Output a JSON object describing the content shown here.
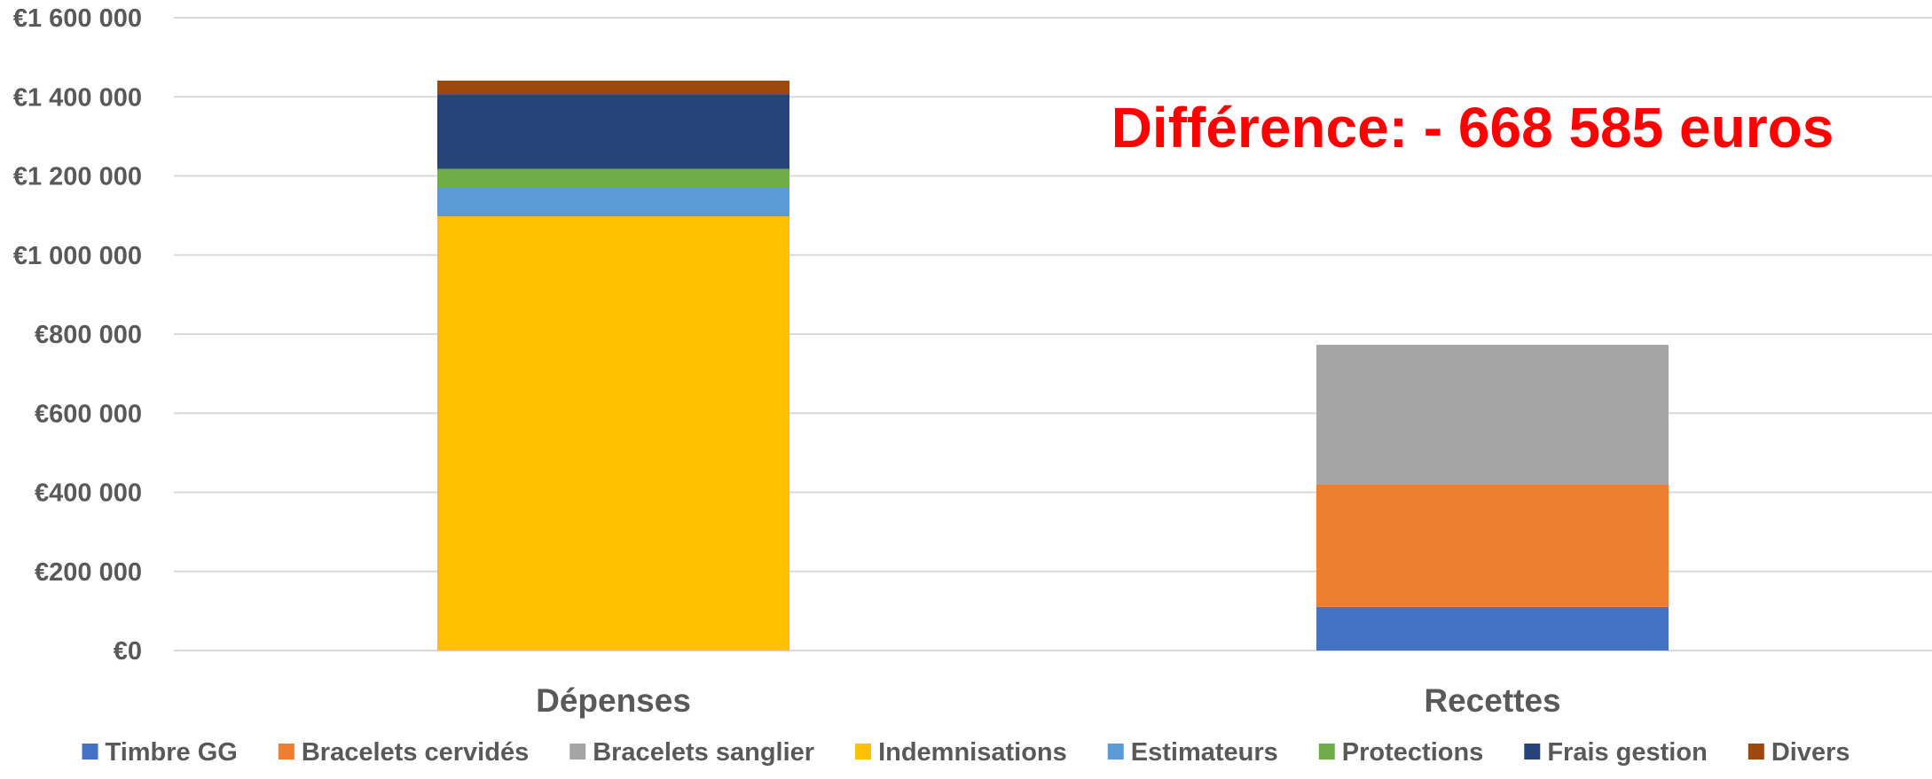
{
  "chart_data": {
    "type": "bar",
    "stacked": true,
    "categories": [
      "Dépenses",
      "Recettes"
    ],
    "series": [
      {
        "name": "Timbre GG",
        "color": "#4472c4",
        "values": [
          0,
          110000
        ]
      },
      {
        "name": "Bracelets cervidés",
        "color": "#ed7d31",
        "values": [
          0,
          310000
        ]
      },
      {
        "name": "Bracelets sanglier",
        "color": "#a5a5a5",
        "values": [
          0,
          353000
        ]
      },
      {
        "name": "Indemnisations",
        "color": "#ffc000",
        "values": [
          1098000,
          0
        ]
      },
      {
        "name": "Estimateurs",
        "color": "#5b9bd5",
        "values": [
          74000,
          0
        ]
      },
      {
        "name": "Protections",
        "color": "#70ad47",
        "values": [
          46000,
          0
        ]
      },
      {
        "name": "Frais gestion",
        "color": "#264478",
        "values": [
          189000,
          0
        ]
      },
      {
        "name": "Divers",
        "color": "#9e480e",
        "values": [
          34000,
          0
        ]
      }
    ],
    "ylim": [
      0,
      1600000
    ],
    "yticks": [
      {
        "value": 0,
        "label": "€0"
      },
      {
        "value": 200000,
        "label": "€200 000"
      },
      {
        "value": 400000,
        "label": "€400 000"
      },
      {
        "value": 600000,
        "label": "€600 000"
      },
      {
        "value": 800000,
        "label": "€800 000"
      },
      {
        "value": 1000000,
        "label": "€1 000 000"
      },
      {
        "value": 1200000,
        "label": "€1 200 000"
      },
      {
        "value": 1400000,
        "label": "€1 400 000"
      },
      {
        "value": 1600000,
        "label": "€1 600 000"
      }
    ],
    "annotation": "Différence: - 668 585 euros",
    "legend_position": "bottom",
    "grid": true,
    "title": "",
    "xlabel": "",
    "ylabel": ""
  }
}
